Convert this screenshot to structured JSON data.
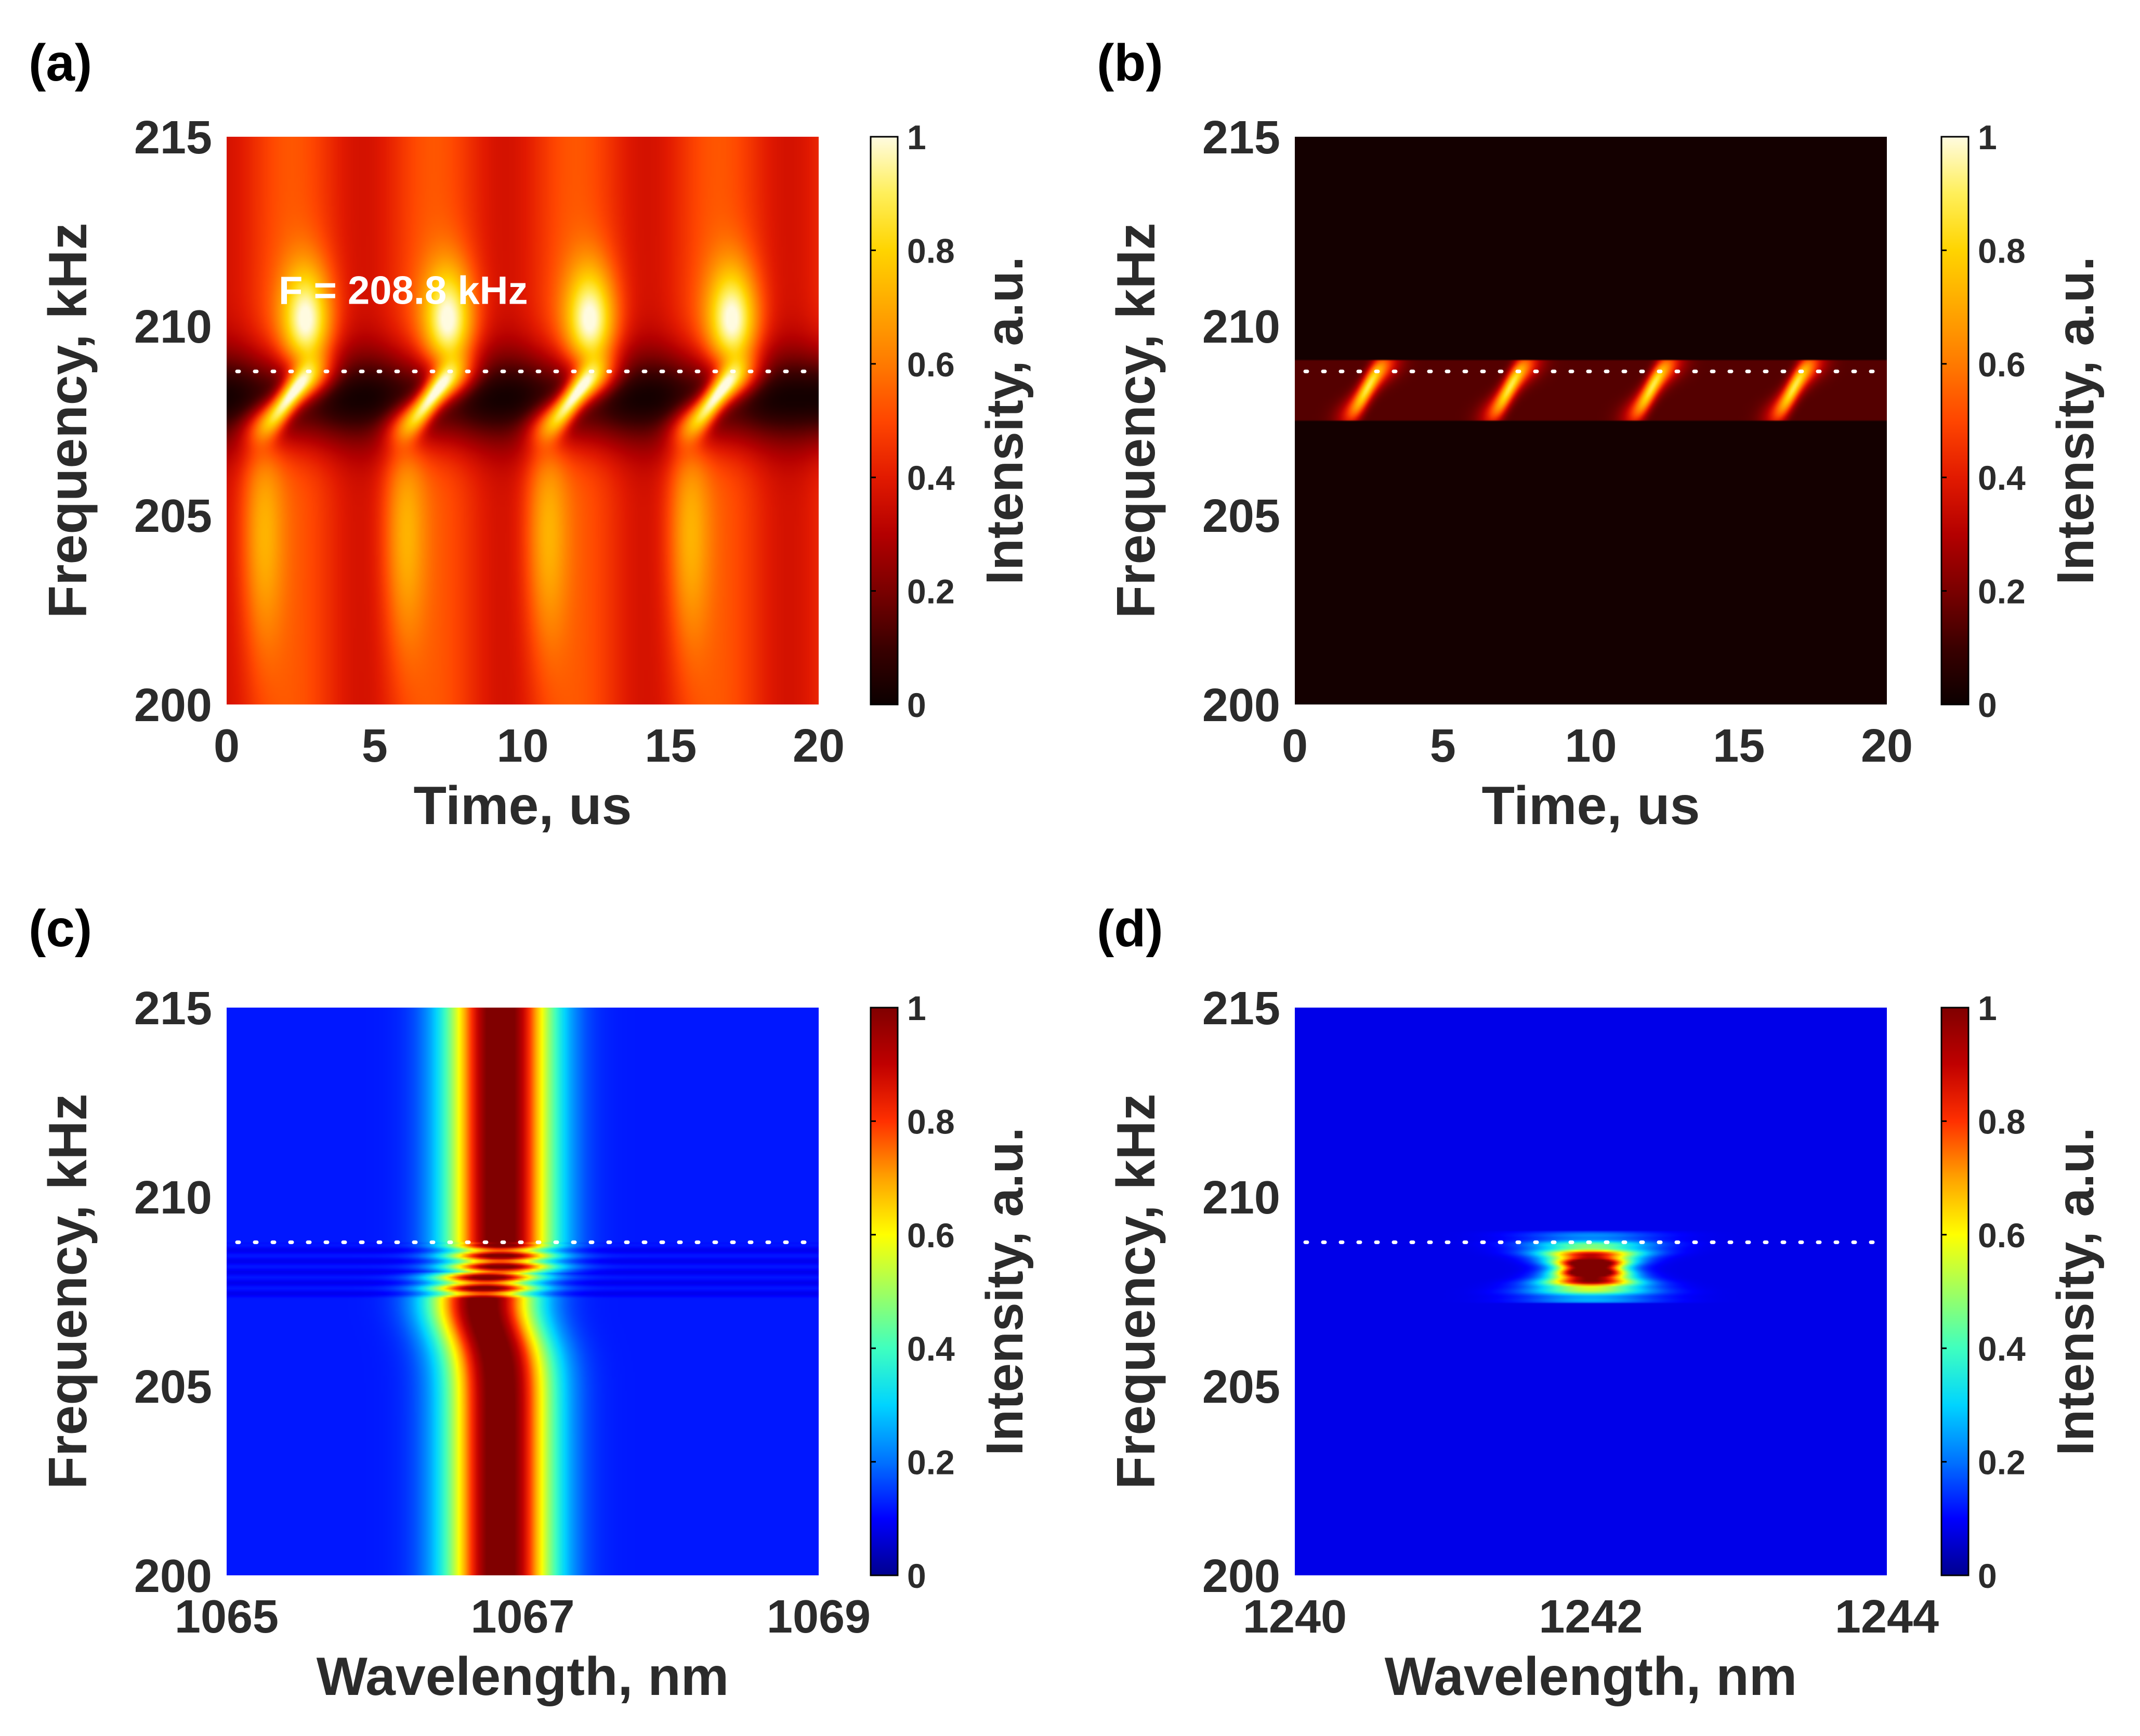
{
  "colors": {
    "background": "#ffffff",
    "text": "#2b2b2b",
    "marker_line": "#ffffff",
    "hot_colormap": [
      "#0b0000",
      "#3a0000",
      "#7a0000",
      "#b40000",
      "#e21a00",
      "#ff4600",
      "#ff7a00",
      "#ffa800",
      "#ffd400",
      "#ffef5a",
      "#fffbe0"
    ],
    "jet_colormap": [
      "#00008f",
      "#0000ff",
      "#0072ff",
      "#00d4ff",
      "#3fffbf",
      "#9fff60",
      "#ffff00",
      "#ffa200",
      "#ff3000",
      "#c00000",
      "#800000"
    ]
  },
  "chart_data": [
    {
      "panel": "(a)",
      "type": "heatmap",
      "colormap": "hot",
      "xlabel": "Time, us",
      "ylabel": "Frequency, kHz",
      "xlim": [
        0,
        20
      ],
      "ylim": [
        200,
        215
      ],
      "xticks": [
        "0",
        "5",
        "10",
        "15",
        "20"
      ],
      "yticks": [
        "200",
        "205",
        "210",
        "215"
      ],
      "colorbar": {
        "label": "Intensity, a.u.",
        "ticks": [
          "0",
          "0.2",
          "0.4",
          "0.6",
          "0.8",
          "1"
        ],
        "range": [
          0,
          1
        ]
      },
      "marker_frequency_khz": 208.8,
      "annotation": "F = 208.8 kHz",
      "pulse_period_us": 4.8,
      "pulse_peak_times_us": [
        3.0,
        7.8,
        12.6,
        17.4
      ],
      "background_intensity": 0.45
    },
    {
      "panel": "(b)",
      "type": "heatmap",
      "colormap": "hot",
      "xlabel": "Time, us",
      "ylabel": "Frequency, kHz",
      "xlim": [
        0,
        20
      ],
      "ylim": [
        200,
        215
      ],
      "xticks": [
        "0",
        "5",
        "10",
        "15",
        "20"
      ],
      "yticks": [
        "200",
        "205",
        "210",
        "215"
      ],
      "colorbar": {
        "label": "Intensity, a.u.",
        "ticks": [
          "0",
          "0.2",
          "0.4",
          "0.6",
          "0.8",
          "1"
        ],
        "range": [
          0,
          1
        ]
      },
      "marker_frequency_khz": 208.8,
      "active_band_khz": [
        207.5,
        209.1
      ],
      "pulse_peak_times_us": [
        3.0,
        7.8,
        12.6,
        17.4
      ],
      "background_intensity": 0.02
    },
    {
      "panel": "(c)",
      "type": "heatmap",
      "colormap": "jet",
      "xlabel": "Wavelength, nm",
      "ylabel": "Frequency, kHz",
      "xlim": [
        1065,
        1069
      ],
      "ylim": [
        200,
        215
      ],
      "xticks": [
        "1065",
        "1067",
        "1069"
      ],
      "yticks": [
        "200",
        "205",
        "210",
        "215"
      ],
      "colorbar": {
        "label": "Intensity, a.u.",
        "ticks": [
          "0",
          "0.2",
          "0.4",
          "0.6",
          "0.8",
          "1"
        ],
        "range": [
          0,
          1
        ]
      },
      "marker_frequency_khz": 208.8,
      "spectral_center_nm": 1066.85,
      "spectral_fwhm_nm": 0.45
    },
    {
      "panel": "(d)",
      "type": "heatmap",
      "colormap": "jet",
      "xlabel": "Wavelength, nm",
      "ylabel": "Frequency, kHz",
      "xlim": [
        1240,
        1244
      ],
      "ylim": [
        200,
        215
      ],
      "xticks": [
        "1240",
        "1242",
        "1244"
      ],
      "yticks": [
        "200",
        "205",
        "210",
        "215"
      ],
      "colorbar": {
        "label": "Intensity, a.u.",
        "ticks": [
          "0",
          "0.2",
          "0.4",
          "0.6",
          "0.8",
          "1"
        ],
        "range": [
          0,
          1
        ]
      },
      "marker_frequency_khz": 208.8,
      "active_band_khz": [
        207.5,
        208.9
      ],
      "spectral_center_nm": 1242.0,
      "spectral_fwhm_nm": 0.3
    }
  ]
}
